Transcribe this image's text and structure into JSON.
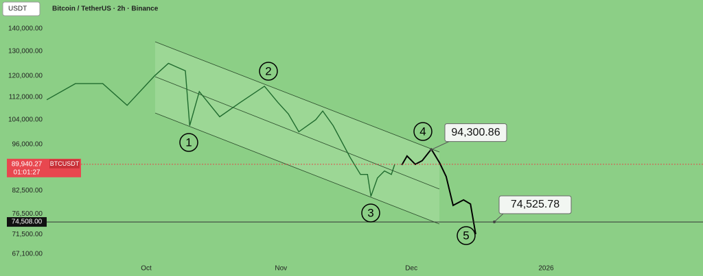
{
  "chart_data": {
    "type": "line",
    "symbol_box": "USDT",
    "title": "Bitcoin / TetherUS · 2h · Binance",
    "log_scale": true,
    "xlim": [
      -33.65,
      128.1
    ],
    "xticks": [
      {
        "value": 0,
        "label": "Oct"
      },
      {
        "value": 31,
        "label": "Nov"
      },
      {
        "value": 61,
        "label": "Dec"
      },
      {
        "value": 92,
        "label": "2026"
      }
    ],
    "ylim": [
      66050,
      153700
    ],
    "yticks": [
      {
        "value": 140000,
        "label": "140,000.00"
      },
      {
        "value": 130000,
        "label": "130,000.00"
      },
      {
        "value": 120000,
        "label": "120,000.00"
      },
      {
        "value": 112000,
        "label": "112,000.00"
      },
      {
        "value": 104000,
        "label": "104,000.00"
      },
      {
        "value": 96000,
        "label": "96,000.00"
      },
      {
        "value": 82500,
        "label": "82,500.00"
      },
      {
        "value": 76500,
        "label": "76,500.00"
      },
      {
        "value": 71500,
        "label": "71,500.00"
      },
      {
        "value": 67100,
        "label": "67,100.00"
      }
    ],
    "series": [
      {
        "name": "BTCUSDT",
        "color": "#1f6b2e",
        "x": [
          -22.9,
          -16.3,
          -10,
          -4.4,
          1.9,
          5.1,
          9,
          10,
          12.2,
          16.9,
          21.6,
          27.2,
          30.3,
          32.7,
          35.1,
          39,
          40.6,
          43,
          46.9,
          49.3,
          50.9,
          51.7,
          53.2,
          54.8,
          56.4,
          57.2
        ],
        "values": [
          111000,
          117000,
          117000,
          109000,
          120000,
          125000,
          122000,
          102000,
          114000,
          105000,
          110000,
          116000,
          110000,
          106000,
          100000,
          104000,
          107000,
          102000,
          92000,
          87000,
          87000,
          81000,
          86000,
          88000,
          87000,
          90000
        ]
      },
      {
        "color": "#000000",
        "x": [
          58.8,
          60,
          61.9,
          63.5,
          65.6,
          67.5,
          69,
          70.6,
          73,
          74.6,
          75.8
        ],
        "values": [
          89730,
          92380,
          89930,
          91000,
          94470,
          90330,
          86400,
          78650,
          80060,
          79000,
          71600
        ]
      }
    ],
    "last_price": {
      "value": 89940.27,
      "label": "89,940.27"
    },
    "countdown": "01:01:27",
    "price_line": {
      "value": 74508,
      "label": "74,508.00"
    },
    "annotations": [
      {
        "value": 94300.86,
        "label": "94,300.86"
      },
      {
        "value": 74525.78,
        "label": "74,525.78"
      }
    ],
    "wave_labels": [
      "1",
      "2",
      "3",
      "4",
      "5"
    ]
  }
}
